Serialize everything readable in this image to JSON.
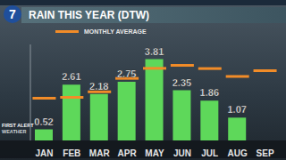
{
  "chart_data": {
    "type": "bar",
    "title": "RAIN THIS YEAR (DTW)",
    "annotations": {
      "logo": "7",
      "brand": "FIRST ALERT",
      "section": "WEATHER"
    },
    "categories": [
      "JAN",
      "FEB",
      "MAR",
      "APR",
      "MAY",
      "JUN",
      "JUL",
      "AUG",
      "SEP"
    ],
    "series": [
      {
        "type": "bar",
        "color": "#5ed85a",
        "values": [
          0.52,
          2.61,
          2.18,
          2.75,
          3.81,
          2.35,
          1.86,
          1.07,
          null
        ]
      },
      {
        "name": "MONTHLY AVERAGE",
        "type": "scatter",
        "marker": "dash",
        "color": "#f28c28",
        "values": [
          1.98,
          2.02,
          2.28,
          2.91,
          3.38,
          3.52,
          3.37,
          3.0,
          3.27
        ]
      }
    ],
    "ylim": [
      0,
      4.5
    ],
    "data_labels": true,
    "tick_labels": "x",
    "grid": false
  }
}
